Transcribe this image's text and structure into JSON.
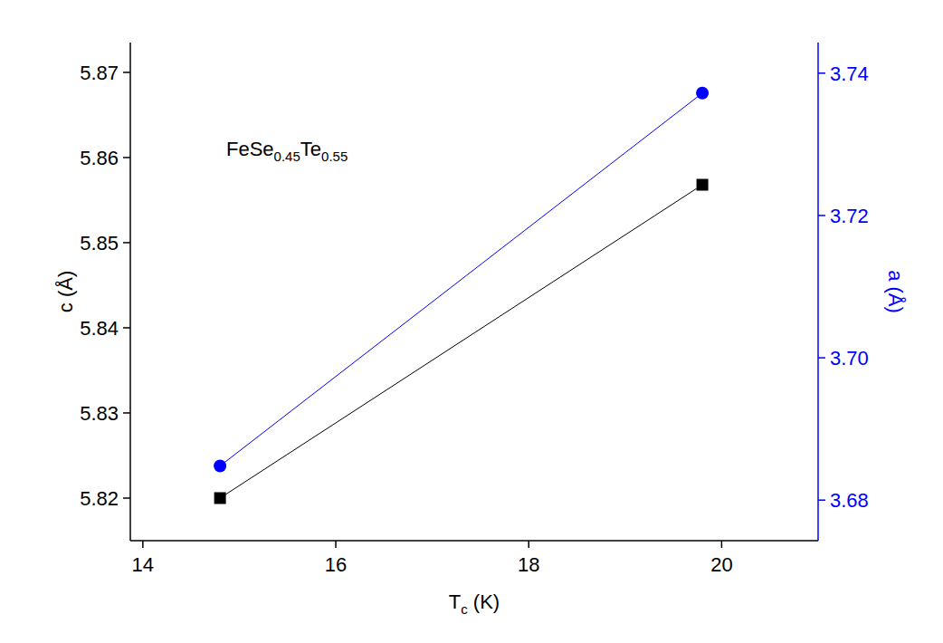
{
  "chart_data": {
    "type": "line",
    "annotation": "FeSe0.45Te0.55",
    "xlabel": "Tc (K)",
    "ylabel": "c (Å)",
    "y2label": "a (Å)",
    "xlim": [
      13.87,
      21.0
    ],
    "xticks": [
      14,
      16,
      18,
      20
    ],
    "ylim": [
      5.815,
      5.8735
    ],
    "yticks": [
      5.82,
      5.83,
      5.84,
      5.85,
      5.86,
      5.87
    ],
    "y2lim": [
      3.6743,
      3.7443
    ],
    "y2ticks": [
      3.68,
      {
        "value": 3.7,
        "label": "3.70"
      },
      3.72,
      3.74
    ],
    "series": [
      {
        "name": "c",
        "color": "#000000",
        "marker": "square",
        "axis": "y",
        "x": [
          14.8,
          19.8
        ],
        "values": [
          5.82,
          5.8568
        ]
      },
      {
        "name": "a",
        "color": "#0000ff",
        "marker": "circle",
        "axis": "y2",
        "x": [
          14.8,
          19.8
        ],
        "values": [
          3.6848,
          3.7372
        ]
      }
    ]
  }
}
